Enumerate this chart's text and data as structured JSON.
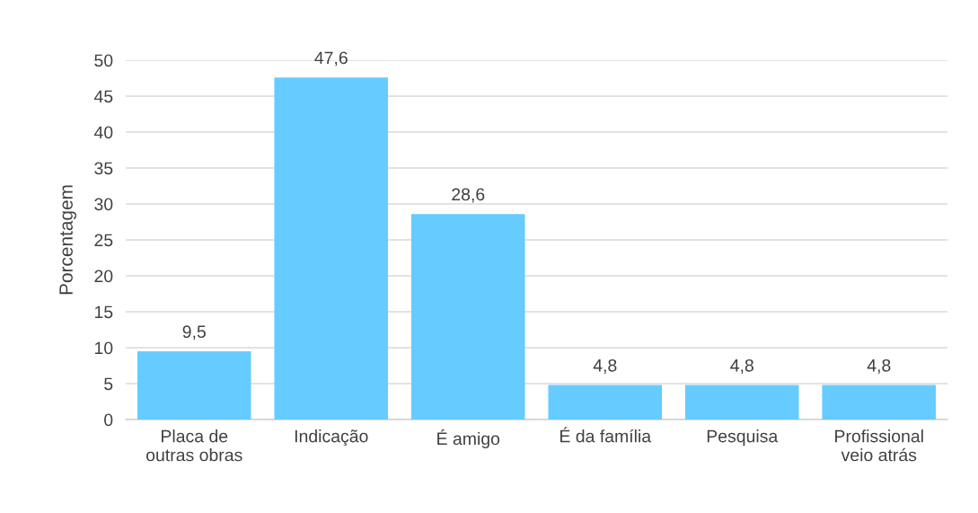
{
  "chart_data": {
    "type": "bar",
    "ylabel": "Porcentagem",
    "categories": [
      "Placa de\noutras obras",
      "Indicação",
      "É amigo",
      "É da família",
      "Pesquisa",
      "Profissional\nveio atrás"
    ],
    "values": [
      9.5,
      47.6,
      28.6,
      4.8,
      4.8,
      4.8
    ],
    "value_labels": [
      "9,5",
      "47,6",
      "28,6",
      "4,8",
      "4,8",
      "4,8"
    ],
    "color": "#66ccff",
    "ylim": [
      0,
      50
    ],
    "yticks": [
      0,
      5,
      10,
      15,
      20,
      25,
      30,
      35,
      40,
      45,
      50
    ],
    "grid": "y",
    "legend": false
  }
}
